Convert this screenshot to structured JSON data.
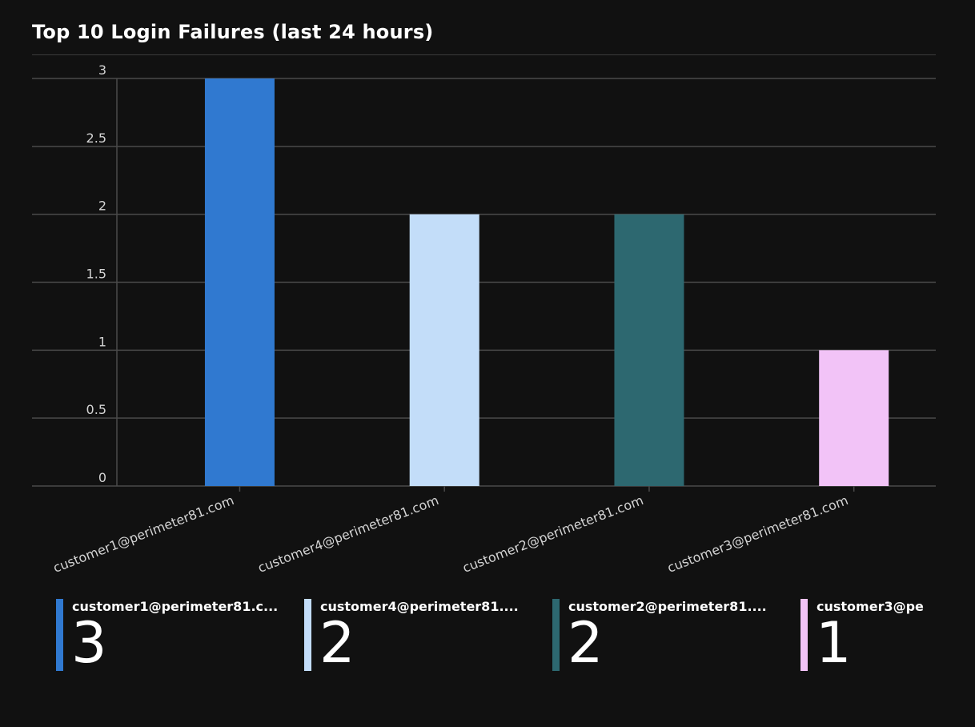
{
  "header": {
    "title": "Top 10 Login Failures (last 24 hours)"
  },
  "colors": {
    "background": "#111111",
    "grid": "#4a4a4a",
    "axis_text": "#d4d4d4"
  },
  "chart_data": {
    "type": "bar",
    "title": "Top 10 Login Failures (last 24 hours)",
    "xlabel": "",
    "ylabel": "",
    "ylim": [
      0,
      3
    ],
    "yticks": [
      "0",
      "0.5",
      "1",
      "1.5",
      "2",
      "2.5",
      "3"
    ],
    "grid": true,
    "categories": [
      "customer1@perimeter81.com",
      "customer4@perimeter81.com",
      "customer2@perimeter81.com",
      "customer3@perimeter81.com"
    ],
    "values": [
      3,
      2,
      2,
      1
    ],
    "bar_colors": [
      "#3079d0",
      "#c3ddf9",
      "#2d6870",
      "#f2c3f7"
    ]
  },
  "legend": {
    "items": [
      {
        "label": "customer1@perimeter81.c...",
        "value": "3",
        "color": "#3079d0"
      },
      {
        "label": "customer4@perimeter81....",
        "value": "2",
        "color": "#c3ddf9"
      },
      {
        "label": "customer2@perimeter81....",
        "value": "2",
        "color": "#2d6870"
      },
      {
        "label": "customer3@pe",
        "value": "1",
        "color": "#f2c3f7"
      }
    ]
  }
}
